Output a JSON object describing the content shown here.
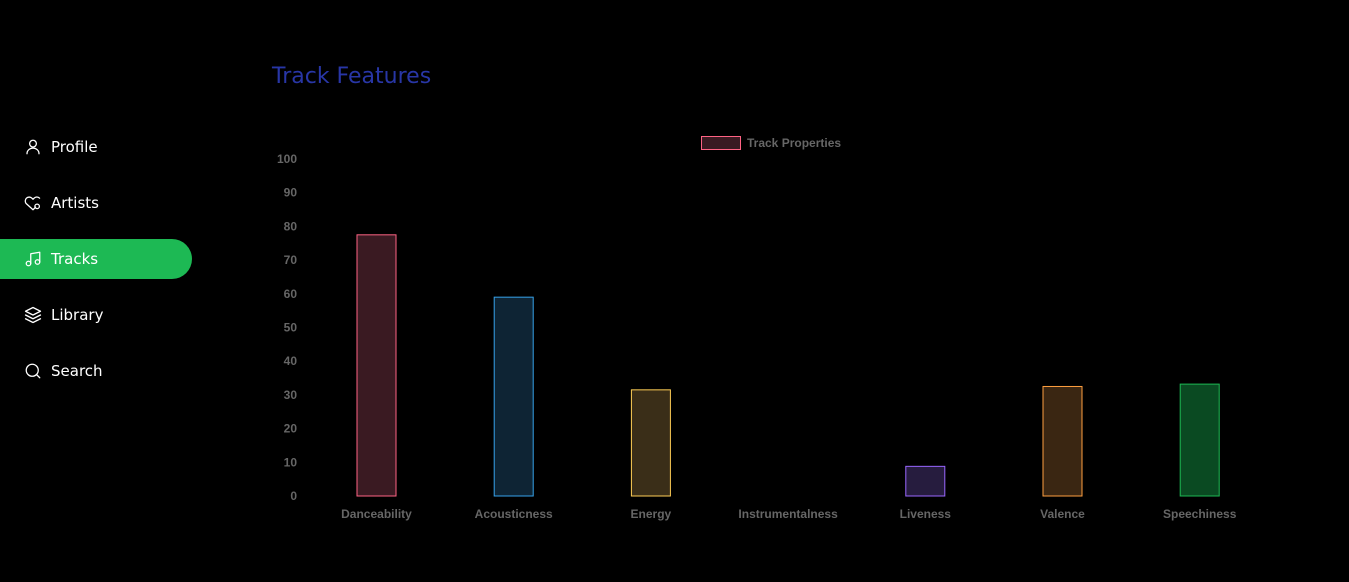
{
  "sidebar": {
    "items": [
      {
        "label": "Profile",
        "icon": "user-icon",
        "active": false
      },
      {
        "label": "Artists",
        "icon": "heart-icon",
        "active": false
      },
      {
        "label": "Tracks",
        "icon": "music-note-icon",
        "active": true
      },
      {
        "label": "Library",
        "icon": "layers-icon",
        "active": false
      },
      {
        "label": "Search",
        "icon": "search-icon",
        "active": false
      }
    ]
  },
  "colors": {
    "accent": "#1db954",
    "title": "#2836a6",
    "background": "#000000"
  },
  "main": {
    "title": "Track Features"
  },
  "chart_data": {
    "type": "bar",
    "categories": [
      "Danceability",
      "Acousticness",
      "Energy",
      "Instrumentalness",
      "Liveness",
      "Valence",
      "Speechiness"
    ],
    "series": [
      {
        "name": "Track Properties",
        "values": [
          77.5,
          59,
          31.5,
          0,
          8.8,
          32.5,
          33.2
        ]
      }
    ],
    "ylim": [
      0,
      100
    ],
    "yticks": [
      0,
      10,
      20,
      30,
      40,
      50,
      60,
      70,
      80,
      90,
      100
    ],
    "legend_position": "top-center",
    "grid": false,
    "bar_colors": [
      {
        "border": "#ff6384",
        "fill": "#3a1a22"
      },
      {
        "border": "#36a2eb",
        "fill": "#0e2434"
      },
      {
        "border": "#ffce56",
        "fill": "#3a2e18"
      },
      {
        "border": "#4bc0c0",
        "fill": "#14302e"
      },
      {
        "border": "#9966ff",
        "fill": "#261c3e"
      },
      {
        "border": "#ff9f40",
        "fill": "#3a2612"
      },
      {
        "border": "#1db954",
        "fill": "#0a4a22"
      }
    ]
  }
}
